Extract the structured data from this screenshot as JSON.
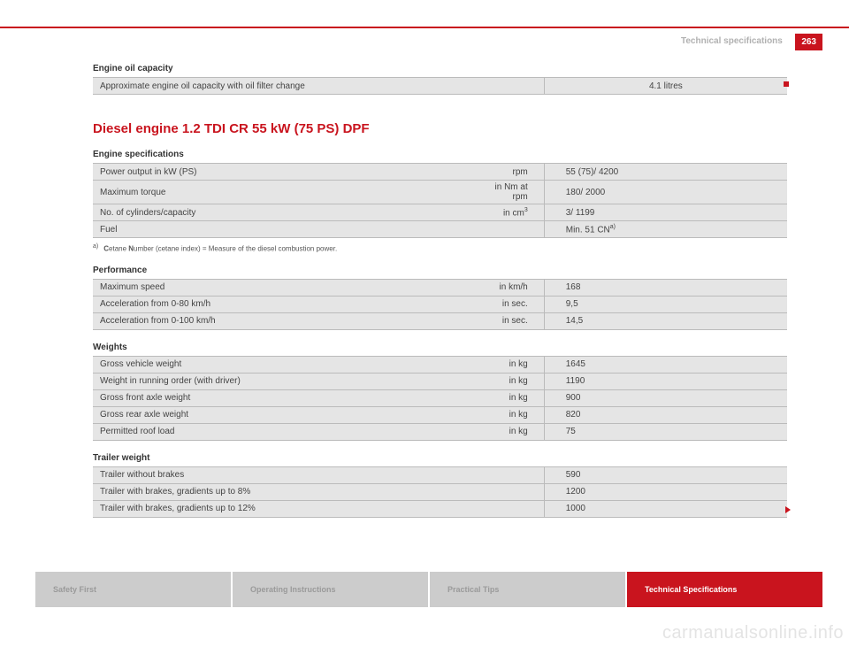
{
  "header": {
    "section_title": "Technical specifications",
    "page_number": "263"
  },
  "colors": {
    "accent": "#c9141e",
    "table_bg": "#e5e5e5",
    "table_border": "#bbbbbb",
    "text": "#333333",
    "muted_text": "#b1b1b1",
    "tab_inactive_bg": "#cccccc",
    "tab_inactive_text": "#9a9a9a",
    "tab_active_bg": "#c9141e",
    "tab_active_text": "#ffffff",
    "watermark": "#e4e4e4"
  },
  "typography": {
    "body_font": "Arial, Helvetica, sans-serif",
    "h2_size_pt": 11,
    "h4_size_pt": 7,
    "table_size_pt": 7,
    "footnote_size_pt": 6
  },
  "oil": {
    "heading": "Engine oil capacity",
    "row_label": "Approximate engine oil capacity with oil filter change",
    "row_value": "4.1 litres"
  },
  "engine_title": "Diesel engine 1.2 TDI CR 55 kW (75 PS) DPF",
  "specs": {
    "heading": "Engine specifications",
    "rows": [
      {
        "label": "Power output in kW (PS)",
        "unit": "rpm",
        "value": "55 (75)/ 4200"
      },
      {
        "label": "Maximum torque",
        "unit": "in Nm at rpm",
        "value": "180/ 2000"
      },
      {
        "label": "No. of cylinders/capacity",
        "unit": "in cm",
        "unit_sup": "3",
        "value": "3/ 1199"
      },
      {
        "label": "Fuel",
        "unit": "",
        "value": "Min. 51 CN",
        "value_sup": "a)"
      }
    ],
    "footnote_marker": "a)",
    "footnote_text": "Cetane Number (cetane index) = Measure of the diesel combustion power.",
    "footnote_bold1": "C",
    "footnote_bold2": "N"
  },
  "perf": {
    "heading": "Performance",
    "rows": [
      {
        "label": "Maximum speed",
        "unit": "in km/h",
        "value": "168"
      },
      {
        "label": "Acceleration from 0-80 km/h",
        "unit": "in sec.",
        "value": "9,5"
      },
      {
        "label": "Acceleration from 0-100 km/h",
        "unit": "in sec.",
        "value": "14,5"
      }
    ]
  },
  "weights": {
    "heading": "Weights",
    "rows": [
      {
        "label": "Gross vehicle weight",
        "unit": "in kg",
        "value": "1645"
      },
      {
        "label": "Weight in running order (with driver)",
        "unit": "in kg",
        "value": "1190"
      },
      {
        "label": "Gross front axle weight",
        "unit": "in kg",
        "value": "900"
      },
      {
        "label": "Gross rear axle weight",
        "unit": "in kg",
        "value": "820"
      },
      {
        "label": "Permitted roof load",
        "unit": "in kg",
        "value": "75"
      }
    ]
  },
  "trailer": {
    "heading": "Trailer weight",
    "rows": [
      {
        "label": "Trailer without brakes",
        "unit": "",
        "value": "590"
      },
      {
        "label": "Trailer with brakes, gradients up to 8%",
        "unit": "",
        "value": "1200"
      },
      {
        "label": "Trailer with brakes, gradients up to 12%",
        "unit": "",
        "value": "1000"
      }
    ]
  },
  "tabs": [
    {
      "label": "Safety First",
      "active": false
    },
    {
      "label": "Operating Instructions",
      "active": false
    },
    {
      "label": "Practical Tips",
      "active": false
    },
    {
      "label": "Technical Specifications",
      "active": true
    }
  ],
  "watermark": "carmanualsonline.info"
}
